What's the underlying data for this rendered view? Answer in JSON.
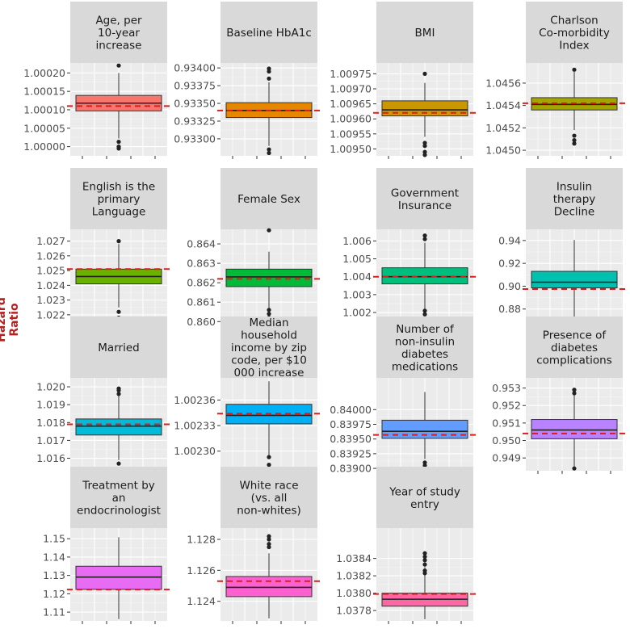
{
  "figure": {
    "ylabel": "Hazard Ratio"
  },
  "chart_data": [
    {
      "type": "boxplot",
      "title": [
        "Age, per",
        "10-year",
        "increase"
      ],
      "color": "#f8766d",
      "ylim": [
        0.999975,
        1.000227
      ],
      "yticks": [
        1.0,
        1.00005,
        1.0001,
        1.00015,
        1.0002
      ],
      "yticklabels": [
        "1.00000",
        "1.00005",
        "1.00010",
        "1.00015",
        "1.00020"
      ],
      "whisker_low": 1.000022,
      "q1": 1.000097,
      "median": 1.000118,
      "q3": 1.000139,
      "whisker_high": 1.0002,
      "outliers": [
        1.00022,
        1.000013,
        1.0,
        0.999995
      ],
      "reference": 1.00011
    },
    {
      "type": "boxplot",
      "title": [
        "Baseline HbA1c"
      ],
      "color": "#e58700",
      "ylim": [
        0.93276,
        0.93407
      ],
      "yticks": [
        0.933,
        0.93325,
        0.9335,
        0.93375,
        0.934
      ],
      "yticklabels": [
        "0.93300",
        "0.93325",
        "0.93350",
        "0.93375",
        "0.93400"
      ],
      "whisker_low": 0.9329,
      "q1": 0.9333,
      "median": 0.9334,
      "q3": 0.93351,
      "whisker_high": 0.9338,
      "outliers": [
        0.93399,
        0.93395,
        0.93385,
        0.93285,
        0.9328
      ],
      "reference": 0.9334
    },
    {
      "type": "boxplot",
      "title": [
        "BMI"
      ],
      "color": "#c99800",
      "ylim": [
        1.009477,
        1.009786
      ],
      "yticks": [
        1.0095,
        1.00955,
        1.0096,
        1.00965,
        1.0097,
        1.00975
      ],
      "yticklabels": [
        "1.00950",
        "1.00955",
        "1.00960",
        "1.00965",
        "1.00970",
        "1.00975"
      ],
      "whisker_low": 1.00954,
      "q1": 1.00961,
      "median": 1.00963,
      "q3": 1.00966,
      "whisker_high": 1.00972,
      "outliers": [
        1.00975,
        1.00952,
        1.00951,
        1.00949,
        1.00948
      ],
      "reference": 1.00962
    },
    {
      "type": "boxplot",
      "title": [
        "Charlson",
        "Co-morbidity",
        "Index"
      ],
      "color": "#a3a500",
      "ylim": [
        1.04495,
        1.04578
      ],
      "yticks": [
        1.045,
        1.0452,
        1.0454,
        1.0456
      ],
      "yticklabels": [
        "1.0450",
        "1.0452",
        "1.0454",
        "1.0456"
      ],
      "whisker_low": 1.04518,
      "q1": 1.04536,
      "median": 1.04541,
      "q3": 1.04547,
      "whisker_high": 1.0457,
      "outliers": [
        1.04572,
        1.04513,
        1.04509,
        1.04506
      ],
      "reference": 1.04542
    },
    {
      "type": "boxplot",
      "title": [
        "English is the",
        "primary",
        "Language"
      ],
      "color": "#6bb100",
      "ylim": [
        1.0215,
        1.0278
      ],
      "yticks": [
        1.022,
        1.023,
        1.024,
        1.025,
        1.026,
        1.027
      ],
      "yticklabels": [
        "1.022",
        "1.023",
        "1.024",
        "1.025",
        "1.026",
        "1.027"
      ],
      "whisker_low": 1.0225,
      "q1": 1.0241,
      "median": 1.0246,
      "q3": 1.0251,
      "whisker_high": 1.0268,
      "outliers": [
        1.027,
        1.0222,
        1.0218
      ],
      "reference": 1.0251
    },
    {
      "type": "boxplot",
      "title": [
        "Female Sex"
      ],
      "color": "#00ba38",
      "ylim": [
        0.85997,
        0.86475
      ],
      "yticks": [
        0.86,
        0.861,
        0.862,
        0.863,
        0.864
      ],
      "yticklabels": [
        "0.860",
        "0.861",
        "0.862",
        "0.863",
        "0.864"
      ],
      "whisker_low": 0.8607,
      "q1": 0.8618,
      "median": 0.8623,
      "q3": 0.8627,
      "whisker_high": 0.8636,
      "outliers": [
        0.8647,
        0.8606,
        0.8604,
        0.8602
      ],
      "reference": 0.8622
    },
    {
      "type": "boxplot",
      "title": [
        "Government",
        "Insurance"
      ],
      "color": "#00bf7d",
      "ylim": [
        1.00146,
        1.00665
      ],
      "yticks": [
        1.002,
        1.003,
        1.004,
        1.005,
        1.006
      ],
      "yticklabels": [
        "1.002",
        "1.003",
        "1.004",
        "1.005",
        "1.006"
      ],
      "whisker_low": 1.0022,
      "q1": 1.0036,
      "median": 1.004,
      "q3": 1.0045,
      "whisker_high": 1.0059,
      "outliers": [
        1.0063,
        1.0061,
        1.0021,
        1.0019,
        1.0016
      ],
      "reference": 1.004
    },
    {
      "type": "boxplot",
      "title": [
        "Insulin",
        "therapy",
        "Decline"
      ],
      "color": "#00c0af",
      "ylim": [
        0.8685,
        0.9498
      ],
      "yticks": [
        0.88,
        0.9,
        0.92,
        0.94
      ],
      "yticklabels": [
        "0.88",
        "0.90",
        "0.92",
        "0.94"
      ],
      "whisker_low": 0.8695,
      "q1": 0.8985,
      "median": 0.9035,
      "q3": 0.913,
      "whisker_high": 0.9405,
      "outliers": [],
      "reference": 0.8975
    },
    {
      "type": "boxplot",
      "title": [
        "Married"
      ],
      "color": "#00bcd8",
      "ylim": [
        1.0153,
        1.0205
      ],
      "yticks": [
        1.016,
        1.017,
        1.018,
        1.019,
        1.02
      ],
      "yticklabels": [
        "1.016",
        "1.017",
        "1.018",
        "1.019",
        "1.020"
      ],
      "whisker_low": 1.0159,
      "q1": 1.0173,
      "median": 1.0178,
      "q3": 1.0182,
      "whisker_high": 1.0195,
      "outliers": [
        1.0199,
        1.0198,
        1.0196,
        1.0157
      ],
      "reference": 1.0179
    },
    {
      "type": "boxplot",
      "title": [
        "Median",
        "household",
        "income by zip",
        "code, per $10",
        "000 increase"
      ],
      "color": "#00b0f6",
      "ylim": [
        1.002277,
        1.002386
      ],
      "yticks": [
        1.0023,
        1.00233,
        1.00236
      ],
      "yticklabels": [
        "1.00230",
        "1.00233",
        "1.00236"
      ],
      "whisker_low": 1.002295,
      "q1": 1.002332,
      "median": 1.002342,
      "q3": 1.002355,
      "whisker_high": 1.002382,
      "outliers": [
        1.002293,
        1.002284,
        1.00228
      ],
      "reference": 1.002344
    },
    {
      "type": "boxplot",
      "title": [
        "Number of",
        "non-insulin",
        "diabetes",
        "medications"
      ],
      "color": "#619cff",
      "ylim": [
        0.83896,
        0.84054
      ],
      "yticks": [
        0.839,
        0.83925,
        0.8395,
        0.83975,
        0.84
      ],
      "yticklabels": [
        "0.83900",
        "0.83925",
        "0.83950",
        "0.83975",
        "0.84000"
      ],
      "whisker_low": 0.83916,
      "q1": 0.83951,
      "median": 0.83963,
      "q3": 0.83982,
      "whisker_high": 0.8403,
      "outliers": [
        0.8391,
        0.83905
      ],
      "reference": 0.83957
    },
    {
      "type": "boxplot",
      "title": [
        "Presence of",
        "diabetes",
        "complications"
      ],
      "color": "#b983ff",
      "ylim": [
        0.94827,
        0.95358
      ],
      "yticks": [
        0.949,
        0.95,
        0.951,
        0.952,
        0.953
      ],
      "yticklabels": [
        "0.949",
        "0.950",
        "0.951",
        "0.952",
        "0.953"
      ],
      "whisker_low": 0.9485,
      "q1": 0.9501,
      "median": 0.9506,
      "q3": 0.9512,
      "whisker_high": 0.9527,
      "outliers": [
        0.9529,
        0.9527,
        0.9484
      ],
      "reference": 0.9504
    },
    {
      "type": "boxplot",
      "title": [
        "Treatment by",
        "an",
        "endocrinologist"
      ],
      "color": "#e76bf3",
      "ylim": [
        1.1052,
        1.1558
      ],
      "yticks": [
        1.11,
        1.12,
        1.13,
        1.14,
        1.15
      ],
      "yticklabels": [
        "1.11",
        "1.12",
        "1.13",
        "1.14",
        "1.15"
      ],
      "whisker_low": 1.1062,
      "q1": 1.1224,
      "median": 1.1291,
      "q3": 1.135,
      "whisker_high": 1.1508,
      "outliers": [],
      "reference": 1.1223
    },
    {
      "type": "boxplot",
      "title": [
        "White race",
        "(vs. all",
        "non-whites)"
      ],
      "color": "#fd61d1",
      "ylim": [
        1.12273,
        1.12873
      ],
      "yticks": [
        1.124,
        1.126,
        1.128
      ],
      "yticklabels": [
        "1.124",
        "1.126",
        "1.128"
      ],
      "whisker_low": 1.1229,
      "q1": 1.1243,
      "median": 1.1249,
      "q3": 1.1256,
      "whisker_high": 1.1271,
      "outliers": [
        1.1282,
        1.128,
        1.1277,
        1.1275
      ],
      "reference": 1.1253
    },
    {
      "type": "boxplot",
      "title": [
        "Year of study",
        "entry"
      ],
      "color": "#ff67a4",
      "ylim": [
        1.03768,
        1.03875
      ],
      "yticks": [
        1.0378,
        1.038,
        1.0382,
        1.0384
      ],
      "yticklabels": [
        "1.0378",
        "1.0380",
        "1.0382",
        "1.0384"
      ],
      "whisker_low": 1.0377,
      "q1": 1.03785,
      "median": 1.03793,
      "q3": 1.038,
      "whisker_high": 1.0383,
      "outliers": [
        1.03846,
        1.03842,
        1.03838,
        1.03833,
        1.03826,
        1.03823
      ],
      "reference": 1.03799
    }
  ]
}
